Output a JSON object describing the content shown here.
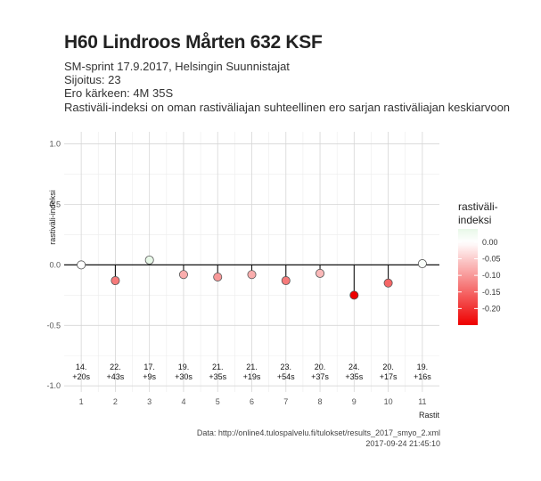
{
  "title": "H60 Lindroos Mårten 632 KSF",
  "subtitle_lines": [
    "SM-sprint 17.9.2017, Helsingin Suunnistajat",
    "Sijoitus: 23",
    "Ero kärkeen: 4M 35S",
    "Rastiväli-indeksi on oman rastiväliajan suhteellinen ero sarjan rastiväliajan keskiarvoon"
  ],
  "caption": {
    "source": "Data: http://online4.tulospalvelu.fi/tulokset/results_2017_smyo_2.xml",
    "timestamp": "2017-09-24 21:45:10"
  },
  "chart_data": {
    "type": "scatter",
    "xlabel": "Rastit",
    "ylabel": "rastiväli-indeksi",
    "xlim": [
      0.5,
      11.5
    ],
    "ylim": [
      -1.05,
      1.1
    ],
    "yticks": [
      1.0,
      0.5,
      0.0,
      -0.5,
      -1.0
    ],
    "ytick_labels": [
      "1.0",
      "0.5",
      "0.0",
      "-0.5",
      "-1.0"
    ],
    "x": [
      1,
      2,
      3,
      4,
      5,
      6,
      7,
      8,
      9,
      10,
      11
    ],
    "y": [
      0.0,
      -0.13,
      0.04,
      -0.08,
      -0.1,
      -0.08,
      -0.13,
      -0.07,
      -0.25,
      -0.15,
      0.01
    ],
    "annotations": [
      [
        "14.",
        "+20s"
      ],
      [
        "22.",
        "+43s"
      ],
      [
        "17.",
        "+9s"
      ],
      [
        "19.",
        "+30s"
      ],
      [
        "21.",
        "+35s"
      ],
      [
        "21.",
        "+19s"
      ],
      [
        "23.",
        "+54s"
      ],
      [
        "20.",
        "+37s"
      ],
      [
        "24.",
        "+35s"
      ],
      [
        "20.",
        "+17s"
      ],
      [
        "19.",
        "+16s"
      ]
    ],
    "grid": true,
    "legend": {
      "title_lines": [
        "rastiväli-",
        "indeksi"
      ],
      "ticks": [
        0.0,
        -0.05,
        -0.1,
        -0.15,
        -0.2
      ],
      "tick_labels": [
        "0.00",
        "-0.05",
        "-0.10",
        "-0.15",
        "-0.20"
      ],
      "range": [
        0.04,
        -0.25
      ],
      "colors": {
        "low": "#ee0000",
        "mid": "#ffffff",
        "high": "#e8f8e8"
      },
      "placement": "right"
    }
  }
}
